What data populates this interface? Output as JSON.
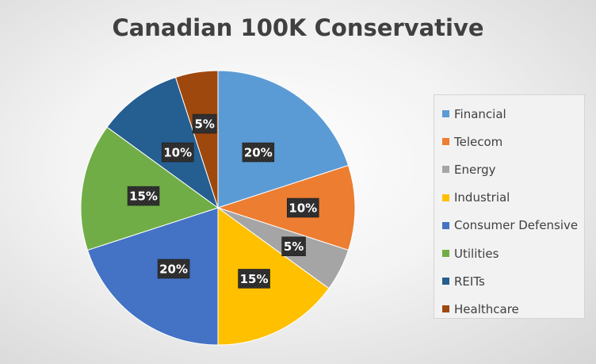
{
  "chart_data": {
    "type": "pie",
    "title": "Canadian 100K Conservative",
    "legend_position": "right",
    "slices": [
      {
        "label": "Financial",
        "value": 20,
        "data_label": "20%",
        "color": "#5b9bd5"
      },
      {
        "label": "Telecom",
        "value": 10,
        "data_label": "10%",
        "color": "#ed7d31"
      },
      {
        "label": "Energy",
        "value": 5,
        "data_label": "5%",
        "color": "#a5a5a5"
      },
      {
        "label": "Industrial",
        "value": 15,
        "data_label": "15%",
        "color": "#ffc000"
      },
      {
        "label": "Consumer Defensive",
        "value": 20,
        "data_label": "20%",
        "color": "#4472c4"
      },
      {
        "label": "Utilities",
        "value": 15,
        "data_label": "15%",
        "color": "#70ad47"
      },
      {
        "label": "REITs",
        "value": 10,
        "data_label": "10%",
        "color": "#255e91"
      },
      {
        "label": "Healthcare",
        "value": 5,
        "data_label": "5%",
        "color": "#9e480e"
      }
    ]
  }
}
